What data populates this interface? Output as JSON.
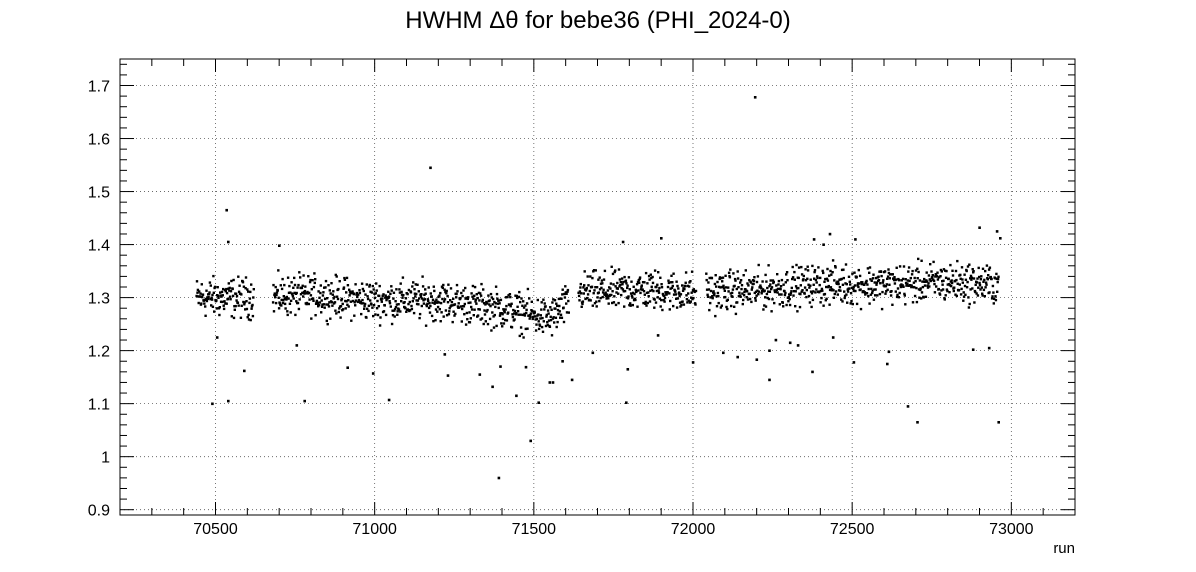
{
  "chart_data": {
    "type": "scatter",
    "title": "HWHM Δθ for bebe36 (PHI_2024-0)",
    "xlabel": "run",
    "ylabel": "",
    "xlim": [
      70200,
      73200
    ],
    "ylim": [
      0.89,
      1.75
    ],
    "x_ticks": [
      70500,
      71000,
      71500,
      72000,
      72500,
      73000
    ],
    "y_ticks": [
      0.9,
      1,
      1.1,
      1.2,
      1.3,
      1.4,
      1.5,
      1.6,
      1.7
    ],
    "x_tick_labels": [
      "70500",
      "71000",
      "71500",
      "72000",
      "72500",
      "73000"
    ],
    "y_tick_labels": [
      "0.9",
      "1",
      "1.1",
      "1.2",
      "1.3",
      "1.4",
      "1.5",
      "1.6",
      "1.7"
    ],
    "grid": true,
    "legend": "none",
    "marker_color": "#000000",
    "x_range_of_data": [
      70440,
      72960
    ],
    "outliers": [
      {
        "x": 70490,
        "y": 1.1
      },
      {
        "x": 70505,
        "y": 1.225
      },
      {
        "x": 70535,
        "y": 1.465
      },
      {
        "x": 70540,
        "y": 1.105
      },
      {
        "x": 70540,
        "y": 1.405
      },
      {
        "x": 70590,
        "y": 1.162
      },
      {
        "x": 70700,
        "y": 1.398
      },
      {
        "x": 70780,
        "y": 1.105
      },
      {
        "x": 70755,
        "y": 1.21
      },
      {
        "x": 70915,
        "y": 1.168
      },
      {
        "x": 70995,
        "y": 1.157
      },
      {
        "x": 71045,
        "y": 1.107
      },
      {
        "x": 71175,
        "y": 1.545
      },
      {
        "x": 71220,
        "y": 1.193
      },
      {
        "x": 71230,
        "y": 1.153
      },
      {
        "x": 71330,
        "y": 1.155
      },
      {
        "x": 71370,
        "y": 1.132
      },
      {
        "x": 71390,
        "y": 0.96
      },
      {
        "x": 71395,
        "y": 1.17
      },
      {
        "x": 71445,
        "y": 1.115
      },
      {
        "x": 71475,
        "y": 1.169
      },
      {
        "x": 71490,
        "y": 1.03
      },
      {
        "x": 71515,
        "y": 1.102
      },
      {
        "x": 71550,
        "y": 1.14
      },
      {
        "x": 71560,
        "y": 1.14
      },
      {
        "x": 71590,
        "y": 1.18
      },
      {
        "x": 71620,
        "y": 1.145
      },
      {
        "x": 71685,
        "y": 1.196
      },
      {
        "x": 71780,
        "y": 1.405
      },
      {
        "x": 71790,
        "y": 1.102
      },
      {
        "x": 71795,
        "y": 1.165
      },
      {
        "x": 71900,
        "y": 1.412
      },
      {
        "x": 71890,
        "y": 1.229
      },
      {
        "x": 72000,
        "y": 1.178
      },
      {
        "x": 72095,
        "y": 1.196
      },
      {
        "x": 72140,
        "y": 1.188
      },
      {
        "x": 72195,
        "y": 1.678
      },
      {
        "x": 72200,
        "y": 1.183
      },
      {
        "x": 72240,
        "y": 1.145
      },
      {
        "x": 72240,
        "y": 1.2
      },
      {
        "x": 72260,
        "y": 1.22
      },
      {
        "x": 72305,
        "y": 1.215
      },
      {
        "x": 72330,
        "y": 1.21
      },
      {
        "x": 72375,
        "y": 1.16
      },
      {
        "x": 72380,
        "y": 1.41
      },
      {
        "x": 72410,
        "y": 1.4
      },
      {
        "x": 72430,
        "y": 1.42
      },
      {
        "x": 72440,
        "y": 1.225
      },
      {
        "x": 72510,
        "y": 1.41
      },
      {
        "x": 72505,
        "y": 1.178
      },
      {
        "x": 72610,
        "y": 1.175
      },
      {
        "x": 72615,
        "y": 1.198
      },
      {
        "x": 72675,
        "y": 1.095
      },
      {
        "x": 72705,
        "y": 1.065
      },
      {
        "x": 72900,
        "y": 1.432
      },
      {
        "x": 72880,
        "y": 1.202
      },
      {
        "x": 72930,
        "y": 1.205
      },
      {
        "x": 72955,
        "y": 1.425
      },
      {
        "x": 72965,
        "y": 1.412
      },
      {
        "x": 72960,
        "y": 1.065
      }
    ],
    "trend": [
      {
        "x": 70440,
        "y": 1.3
      },
      {
        "x": 70600,
        "y": 1.3
      },
      {
        "x": 70800,
        "y": 1.305
      },
      {
        "x": 71000,
        "y": 1.295
      },
      {
        "x": 71200,
        "y": 1.295
      },
      {
        "x": 71400,
        "y": 1.28
      },
      {
        "x": 71550,
        "y": 1.26
      },
      {
        "x": 71650,
        "y": 1.31
      },
      {
        "x": 71850,
        "y": 1.315
      },
      {
        "x": 72000,
        "y": 1.31
      },
      {
        "x": 72200,
        "y": 1.315
      },
      {
        "x": 72400,
        "y": 1.325
      },
      {
        "x": 72600,
        "y": 1.325
      },
      {
        "x": 72800,
        "y": 1.33
      },
      {
        "x": 72960,
        "y": 1.325
      }
    ]
  }
}
